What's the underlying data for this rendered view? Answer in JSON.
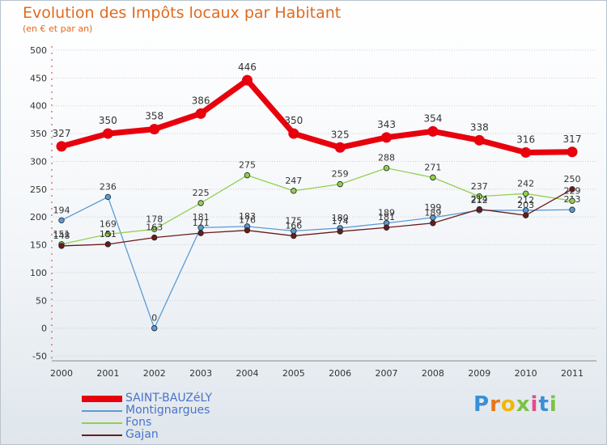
{
  "header": {
    "title": "Evolution des Impôts locaux par Habitant",
    "subtitle": "(en € et par an)"
  },
  "logo": {
    "letters": [
      "P",
      "r",
      "o",
      "x",
      "i",
      "t",
      "i"
    ],
    "colors": [
      "#3a8fd6",
      "#e8751a",
      "#f2b705",
      "#7cc243",
      "#e64a8c",
      "#3a8fd6",
      "#7cc243"
    ]
  },
  "chart_data": {
    "type": "line",
    "title": "Evolution des Impôts locaux par Habitant",
    "subtitle": "(en € et par an)",
    "xlabel": "",
    "ylabel": "",
    "ylim": [
      -50,
      500
    ],
    "yticks": [
      -50,
      0,
      50,
      100,
      150,
      200,
      250,
      300,
      350,
      400,
      450,
      500
    ],
    "grid": "horizontal dotted",
    "legend_position": "bottom-left",
    "categories": [
      "2000",
      "2001",
      "2002",
      "2003",
      "2004",
      "2005",
      "2006",
      "2007",
      "2008",
      "2009",
      "2010",
      "2011"
    ],
    "series": [
      {
        "name": "SAINT-BAUZéLY",
        "color": "#e8000d",
        "values": [
          327,
          350,
          358,
          386,
          446,
          350,
          325,
          343,
          354,
          338,
          316,
          317
        ]
      },
      {
        "name": "Montignargues",
        "color": "#5b9bd5",
        "values": [
          194,
          236,
          0,
          181,
          183,
          175,
          180,
          189,
          199,
          212,
          212,
          213
        ]
      },
      {
        "name": "Fons",
        "color": "#92d050",
        "values": [
          151,
          169,
          178,
          225,
          275,
          247,
          259,
          288,
          271,
          237,
          242,
          229
        ]
      },
      {
        "name": "Gajan",
        "color": "#6b1b1b",
        "values": [
          148,
          151,
          163,
          171,
          176,
          166,
          174,
          181,
          189,
          214,
          203,
          250
        ]
      }
    ]
  }
}
